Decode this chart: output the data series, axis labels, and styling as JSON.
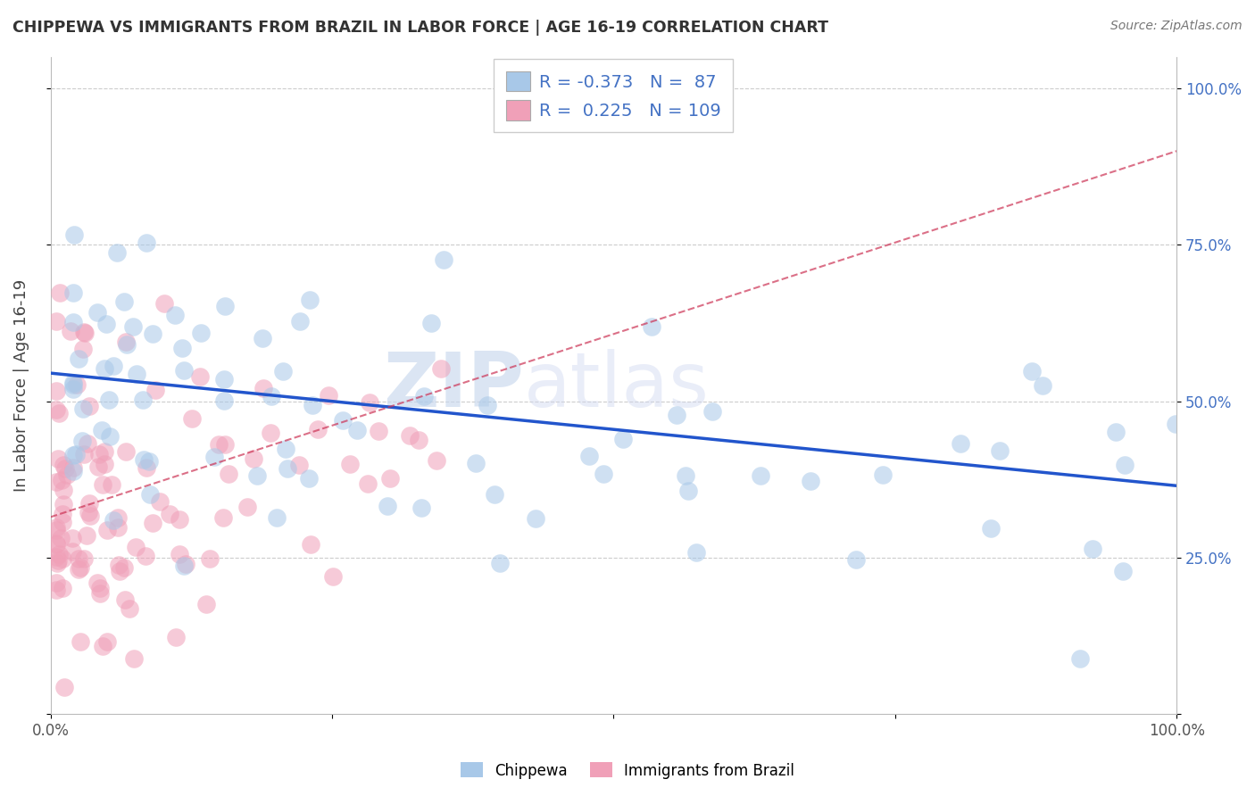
{
  "title": "CHIPPEWA VS IMMIGRANTS FROM BRAZIL IN LABOR FORCE | AGE 16-19 CORRELATION CHART",
  "source": "Source: ZipAtlas.com",
  "ylabel": "In Labor Force | Age 16-19",
  "r_chippewa": -0.373,
  "n_chippewa": 87,
  "r_brazil": 0.225,
  "n_brazil": 109,
  "blue_color": "#a8c8e8",
  "pink_color": "#f0a0b8",
  "trend_blue": "#2255cc",
  "trend_pink": "#cc3355",
  "watermark_zip": "ZIP",
  "watermark_atlas": "atlas",
  "xlim": [
    0.0,
    1.0
  ],
  "ylim": [
    0.0,
    1.05
  ],
  "x_ticks": [
    0.0,
    0.25,
    0.5,
    0.75,
    1.0
  ],
  "x_tick_labels": [
    "0.0%",
    "",
    "",
    "",
    "100.0%"
  ],
  "y_ticks": [
    0.0,
    0.25,
    0.5,
    0.75,
    1.0
  ],
  "y_tick_labels_right": [
    "",
    "25.0%",
    "50.0%",
    "75.0%",
    "100.0%"
  ],
  "grid_color": "#cccccc",
  "grid_style": "--",
  "legend_bottom": [
    "Chippewa",
    "Immigrants from Brazil"
  ],
  "blue_trend_start_y": 0.545,
  "blue_trend_end_y": 0.365,
  "pink_trend_start_y": 0.315,
  "pink_trend_end_y": 0.9
}
